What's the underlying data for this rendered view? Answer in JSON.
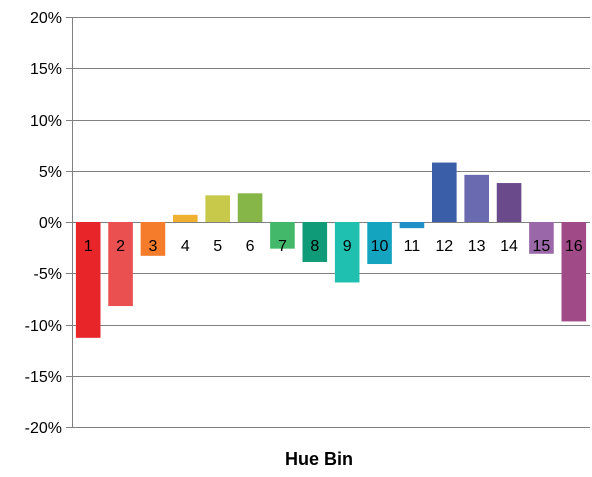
{
  "chart_data": {
    "type": "bar",
    "title": "",
    "xlabel": "Hue Bin",
    "ylabel": "",
    "categories": [
      "1",
      "2",
      "3",
      "4",
      "5",
      "6",
      "7",
      "8",
      "9",
      "10",
      "11",
      "12",
      "13",
      "14",
      "15",
      "16"
    ],
    "values": [
      -11.3,
      -8.2,
      -3.3,
      0.7,
      2.6,
      2.8,
      -2.6,
      -3.9,
      -5.9,
      -4.1,
      -0.6,
      5.8,
      4.6,
      3.8,
      -3.1,
      -9.7
    ],
    "value_unit": "%",
    "ylim": [
      -20,
      20
    ],
    "y_ticks": [
      "20%",
      "15%",
      "10%",
      "5%",
      "0%",
      "-5%",
      "-10%",
      "-15%",
      "-20%"
    ],
    "y_tick_values": [
      20,
      15,
      10,
      5,
      0,
      -5,
      -10,
      -15,
      -20
    ],
    "grid": true,
    "legend": "none",
    "colors": [
      "#e8262a",
      "#e9504f",
      "#f47c2a",
      "#f0b030",
      "#c8c84a",
      "#86b548",
      "#43b86a",
      "#0f9a78",
      "#20c0b0",
      "#15a4c0",
      "#2090c8",
      "#3a5ea8",
      "#6a6ab0",
      "#6a4a8a",
      "#9a68a8",
      "#a04a88"
    ],
    "grid_color": "#808080"
  }
}
